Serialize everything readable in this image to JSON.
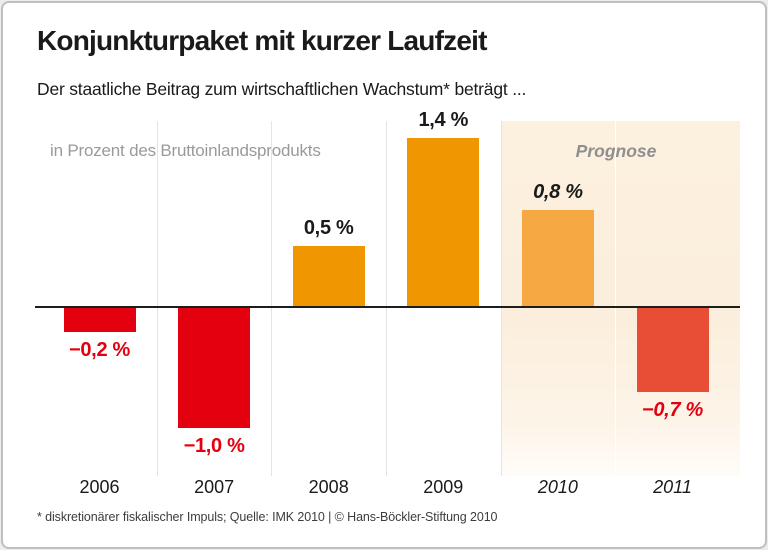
{
  "card": {
    "title": "Konjunkturpaket mit kurzer Laufzeit",
    "subtitle": "Der staatliche Beitrag zum wirtschaftlichen Wachstum* beträgt ...",
    "footnote": "* diskretionärer fiskalischer Impuls; Quelle: IMK 2010 | © Hans-Böckler-Stiftung 2010"
  },
  "chart_data": {
    "type": "bar",
    "title": "Konjunkturpaket mit kurzer Laufzeit",
    "subtitle": "Der staatliche Beitrag zum wirtschaftlichen Wachstum* beträgt ...",
    "unit_label": "in Prozent des Bruttoinlandsprodukts",
    "forecast_label": "Prognose",
    "xlabel": "",
    "ylabel": "in Prozent des Bruttoinlandsprodukts",
    "ylim": [
      -1.45,
      1.55
    ],
    "grid": "vertical column separators, no horizontal gridlines, axis labels hidden",
    "legend_position": "none",
    "categories": [
      "2006",
      "2007",
      "2008",
      "2009",
      "2010",
      "2011"
    ],
    "values": [
      -0.2,
      -1.0,
      0.5,
      1.4,
      0.8,
      -0.7
    ],
    "value_labels": [
      "−0,2 %",
      "−1,0 %",
      "0,5 %",
      "1,4 %",
      "0,8 %",
      "−0,7 %"
    ],
    "forecast": [
      false,
      false,
      false,
      false,
      true,
      true
    ],
    "bar_colors": [
      "#e3000f",
      "#e3000f",
      "#f09600",
      "#f09600",
      "#f6a942",
      "#e84e35"
    ],
    "label_colors": [
      "#e3000f",
      "#e3000f",
      "#1a1a1a",
      "#1a1a1a",
      "#1a1a1a",
      "#e3000f"
    ]
  },
  "colors": {
    "negative_actual": "#e3000f",
    "positive_actual": "#f09600",
    "positive_forecast": "#f6a942",
    "negative_forecast": "#e84e35",
    "forecast_background": "#fbeedc",
    "muted_text": "#9a9a9a",
    "zero_line": "#1d1d1b",
    "card_border": "#bfbfbf"
  }
}
